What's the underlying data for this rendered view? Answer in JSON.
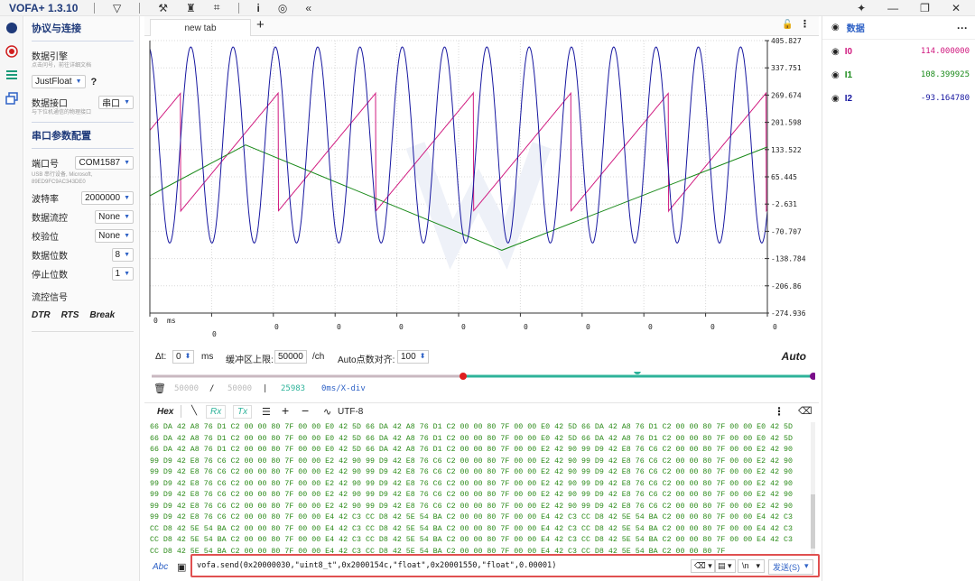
{
  "app": {
    "title": "VOFA+ 1.3.10"
  },
  "toolbar": {
    "icons": [
      "funnel-icon",
      "wrench-icon",
      "shirt-icon",
      "scan-icon",
      "info-icon",
      "fingerprint-icon",
      "collapse-icon"
    ]
  },
  "window": {
    "pin": "✦",
    "min": "—",
    "max": "❐",
    "close": "✕"
  },
  "left_panel": {
    "section1_title": "协议与连接",
    "engine_label": "数据引擎",
    "engine_hint": "点击问号，前往详细文档",
    "engine_value": "JustFloat",
    "help": "?",
    "iface_label": "数据接口",
    "iface_value": "串口",
    "iface_hint": "与下位机通信的物理接口",
    "section2_title": "串口参数配置",
    "port_label": "端口号",
    "port_value": "COM1587",
    "port_hint1": "USB 串行设备, Microsoft,",
    "port_hint2": "89ED9FC9AC343DE0",
    "baud_label": "波特率",
    "baud_value": "2000000",
    "flow_label": "数据流控",
    "flow_value": "None",
    "parity_label": "校验位",
    "parity_value": "None",
    "databits_label": "数据位数",
    "databits_value": "8",
    "stopbits_label": "停止位数",
    "stopbits_value": "1",
    "signal_label": "流控信号",
    "dtr": "DTR",
    "rts": "RTS",
    "brk": "Break"
  },
  "tabs": {
    "active": "new tab",
    "add": "+"
  },
  "chart_data": {
    "type": "line",
    "y_ticks": [
      "405.827",
      "337.751",
      "269.674",
      "201.598",
      "133.522",
      "65.445",
      "-2.631",
      "-70.707",
      "-138.784",
      "-206.86",
      "-274.936"
    ],
    "x_labels": [
      "0",
      "ms",
      "0",
      "0",
      "0",
      "0",
      "0",
      "0",
      "0",
      "0",
      "0",
      "0"
    ],
    "ylim": [
      -274.936,
      405.827
    ],
    "series": [
      {
        "name": "I0",
        "color": "#d0197f",
        "kind": "sawtooth",
        "min": -20,
        "max": 275,
        "period_fraction": 0.158
      },
      {
        "name": "I1",
        "color": "#1a8a1a",
        "kind": "triangle",
        "min": -120,
        "max": 145
      },
      {
        "name": "I2",
        "color": "#1717a0",
        "kind": "sine",
        "min": -100,
        "max": 390,
        "cycles": 14.6
      }
    ]
  },
  "controls": {
    "dt_label": "Δt:",
    "dt_value": "0",
    "dt_unit": "ms",
    "buffer_label": "缓冲区上限:",
    "buffer_value": "50000",
    "buffer_unit": "/ch",
    "auto_label": "Auto点数对齐:",
    "auto_value": "100",
    "auto_mode": "Auto"
  },
  "stats": {
    "v1": "50000",
    "sep": "/",
    "v2": "50000",
    "sep2": "|",
    "count": "25983",
    "xdiv": "0ms/X-div"
  },
  "recv_bar": {
    "hex": "Hex",
    "rx": "Rx",
    "tx": "Tx",
    "encoding": "UTF-8"
  },
  "hex_lines": [
    "66 DA 42 A8 76 D1 C2 00 00 80 7F 00 00 E0 42 5D 66 DA 42 A8 76 D1 C2 00 00 80 7F 00 00 E0 42 5D 66 DA 42 A8 76 D1 C2 00 00 80 7F 00 00 E0 42 5D",
    "66 DA 42 A8 76 D1 C2 00 00 80 7F 00 00 E0 42 5D 66 DA 42 A8 76 D1 C2 00 00 80 7F 00 00 E0 42 5D 66 DA 42 A8 76 D1 C2 00 00 80 7F 00 00 E0 42 5D",
    "66 DA 42 A8 76 D1 C2 00 00 80 7F 00 00 E0 42 5D 66 DA 42 A8 76 D1 C2 00 00 80 7F 00 00 E2 42 90 99 D9 42 E8 76 C6 C2 00 00 80 7F 00 00 E2 42 90",
    "99 D9 42 E8 76 C6 C2 00 00 80 7F 00 00 E2 42 90 99 D9 42 E8 76 C6 C2 00 00 80 7F 00 00 E2 42 90 99 D9 42 E8 76 C6 C2 00 00 80 7F 00 00 E2 42 90",
    "99 D9 42 E8 76 C6 C2 00 00 80 7F 00 00 E2 42 90 99 D9 42 E8 76 C6 C2 00 00 80 7F 00 00 E2 42 90 99 D9 42 E8 76 C6 C2 00 00 80 7F 00 00 E2 42 90",
    "99 D9 42 E8 76 C6 C2 00 00 80 7F 00 00 E2 42 90 99 D9 42 E8 76 C6 C2 00 00 80 7F 00 00 E2 42 90 99 D9 42 E8 76 C6 C2 00 00 80 7F 00 00 E2 42 90",
    "99 D9 42 E8 76 C6 C2 00 00 80 7F 00 00 E2 42 90 99 D9 42 E8 76 C6 C2 00 00 80 7F 00 00 E2 42 90 99 D9 42 E8 76 C6 C2 00 00 80 7F 00 00 E2 42 90",
    "99 D9 42 E8 76 C6 C2 00 00 80 7F 00 00 E2 42 90 99 D9 42 E8 76 C6 C2 00 00 80 7F 00 00 E2 42 90 99 D9 42 E8 76 C6 C2 00 00 80 7F 00 00 E2 42 90",
    "99 D9 42 E8 76 C6 C2 00 00 80 7F 00 00 E4 42 C3 CC D8 42 5E 54 BA C2 00 00 80 7F 00 00 E4 42 C3 CC D8 42 5E 54 BA C2 00 00 80 7F 00 00 E4 42 C3",
    "CC D8 42 5E 54 BA C2 00 00 80 7F 00 00 E4 42 C3 CC D8 42 5E 54 BA C2 00 00 80 7F 00 00 E4 42 C3 CC D8 42 5E 54 BA C2 00 00 80 7F 00 00 E4 42 C3",
    "CC D8 42 5E 54 BA C2 00 00 80 7F 00 00 E4 42 C3 CC D8 42 5E 54 BA C2 00 00 80 7F 00 00 E4 42 C3 CC D8 42 5E 54 BA C2 00 00 80 7F 00 00 E4 42 C3",
    "CC D8 42 5E 54 BA C2 00 00 80 7F 00 00 E4 42 C3 CC D8 42 5E 54 BA C2 00 00 80 7F 00 00 E4 42 C3 CC D8 42 5E 54 BA C2 00 00 80 7F"
  ],
  "send": {
    "mode": "Abc",
    "command": "vofa.send(0x20000030,\"uint8_t\",0x2000154c,\"float\",0x20001550,\"float\",0.00001)",
    "newline": "\\n",
    "button": "发送(S)"
  },
  "right_panel": {
    "title": "数据",
    "more": "···",
    "channels": [
      {
        "name": "I0",
        "value": "114.000000",
        "color": "#d0197f"
      },
      {
        "name": "I1",
        "value": "108.399925",
        "color": "#1a8a1a"
      },
      {
        "name": "I2",
        "value": "-93.164780",
        "color": "#1717a0"
      }
    ]
  }
}
